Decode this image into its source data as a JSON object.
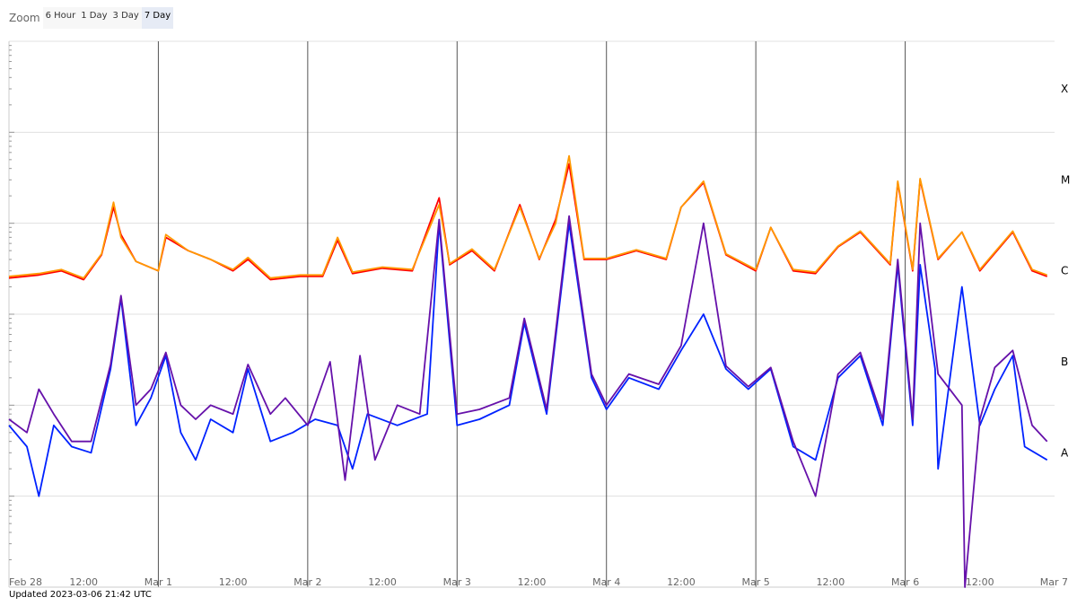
{
  "zoom": {
    "label": "Zoom",
    "buttons": [
      "6 Hour",
      "1 Day",
      "3 Day",
      "7 Day"
    ],
    "active": "7 Day"
  },
  "footer": {
    "updated": "Updated 2023-03-06 21:42 UTC"
  },
  "chart_data": {
    "type": "line",
    "title": "",
    "xlabel": "",
    "ylabel": "",
    "y_scale": "log",
    "ylim": [
      1e-09,
      0.001
    ],
    "x_range": [
      "2023-02-28 00:00",
      "2023-03-07 00:00"
    ],
    "x_ticks": [
      "Feb 28",
      "12:00",
      "Mar 1",
      "12:00",
      "Mar 2",
      "12:00",
      "Mar 3",
      "12:00",
      "Mar 4",
      "12:00",
      "Mar 5",
      "12:00",
      "Mar 6",
      "12:00",
      "Mar 7"
    ],
    "right_labels": [
      {
        "label": "X",
        "value": 0.0003
      },
      {
        "label": "M",
        "value": 3e-05
      },
      {
        "label": "C",
        "value": 3e-06
      },
      {
        "label": "B",
        "value": 3e-07
      },
      {
        "label": "A",
        "value": 3e-08
      }
    ],
    "grid": "horizontal gridlines at each decade; vertical lines at each day",
    "colors": {
      "long_primary": "#ff0000",
      "long_secondary": "#ff9900",
      "short_primary": "#0022ff",
      "short_secondary": "#6611aa"
    },
    "x": [
      0,
      0.25,
      0.5,
      0.75,
      1.0,
      1.25,
      1.5,
      1.75,
      2.0,
      2.25,
      2.5,
      2.75,
      3.0,
      3.25,
      3.5,
      3.75,
      4.0,
      4.25,
      4.5,
      4.75,
      5.0,
      5.25,
      5.5,
      5.75,
      6.0,
      6.25,
      6.5,
      6.75,
      7.0
    ],
    "series": [
      {
        "color": "#ff0000",
        "values": [
          {
            "x": 0.0,
            "y": 2.5e-06
          },
          {
            "x": 0.2,
            "y": 2.7e-06
          },
          {
            "x": 0.35,
            "y": 3e-06
          },
          {
            "x": 0.5,
            "y": 2.4e-06
          },
          {
            "x": 0.62,
            "y": 4.5e-06
          },
          {
            "x": 0.7,
            "y": 1.5e-05
          },
          {
            "x": 0.75,
            "y": 7.5e-06
          },
          {
            "x": 0.85,
            "y": 3.8e-06
          },
          {
            "x": 1.0,
            "y": 3e-06
          },
          {
            "x": 1.05,
            "y": 7e-06
          },
          {
            "x": 1.2,
            "y": 5e-06
          },
          {
            "x": 1.35,
            "y": 4e-06
          },
          {
            "x": 1.5,
            "y": 3e-06
          },
          {
            "x": 1.6,
            "y": 4e-06
          },
          {
            "x": 1.75,
            "y": 2.4e-06
          },
          {
            "x": 1.95,
            "y": 2.6e-06
          },
          {
            "x": 2.1,
            "y": 2.6e-06
          },
          {
            "x": 2.2,
            "y": 6.5e-06
          },
          {
            "x": 2.3,
            "y": 2.8e-06
          },
          {
            "x": 2.5,
            "y": 3.2e-06
          },
          {
            "x": 2.7,
            "y": 3e-06
          },
          {
            "x": 2.88,
            "y": 1.9e-05
          },
          {
            "x": 2.95,
            "y": 3.5e-06
          },
          {
            "x": 3.1,
            "y": 5e-06
          },
          {
            "x": 3.25,
            "y": 3e-06
          },
          {
            "x": 3.42,
            "y": 1.6e-05
          },
          {
            "x": 3.55,
            "y": 4e-06
          },
          {
            "x": 3.66,
            "y": 1.1e-05
          },
          {
            "x": 3.75,
            "y": 4.5e-05
          },
          {
            "x": 3.85,
            "y": 4e-06
          },
          {
            "x": 4.0,
            "y": 4e-06
          },
          {
            "x": 4.2,
            "y": 5e-06
          },
          {
            "x": 4.4,
            "y": 4e-06
          },
          {
            "x": 4.5,
            "y": 1.5e-05
          },
          {
            "x": 4.65,
            "y": 2.8e-05
          },
          {
            "x": 4.8,
            "y": 4.5e-06
          },
          {
            "x": 5.0,
            "y": 3e-06
          },
          {
            "x": 5.1,
            "y": 9e-06
          },
          {
            "x": 5.25,
            "y": 3e-06
          },
          {
            "x": 5.4,
            "y": 2.8e-06
          },
          {
            "x": 5.55,
            "y": 5.5e-06
          },
          {
            "x": 5.7,
            "y": 8e-06
          },
          {
            "x": 5.9,
            "y": 3.5e-06
          },
          {
            "x": 5.95,
            "y": 2.8e-05
          },
          {
            "x": 6.05,
            "y": 3e-06
          },
          {
            "x": 6.1,
            "y": 3e-05
          },
          {
            "x": 6.22,
            "y": 4e-06
          },
          {
            "x": 6.38,
            "y": 8e-06
          },
          {
            "x": 6.5,
            "y": 3e-06
          },
          {
            "x": 6.72,
            "y": 8e-06
          },
          {
            "x": 6.85,
            "y": 3e-06
          },
          {
            "x": 6.95,
            "y": 2.6e-06
          }
        ]
      },
      {
        "color": "#ff9900",
        "values": [
          {
            "x": 0.0,
            "y": 2.6e-06
          },
          {
            "x": 0.2,
            "y": 2.8e-06
          },
          {
            "x": 0.35,
            "y": 3.1e-06
          },
          {
            "x": 0.5,
            "y": 2.5e-06
          },
          {
            "x": 0.62,
            "y": 4.6e-06
          },
          {
            "x": 0.7,
            "y": 1.7e-05
          },
          {
            "x": 0.75,
            "y": 7e-06
          },
          {
            "x": 0.85,
            "y": 3.8e-06
          },
          {
            "x": 1.0,
            "y": 3e-06
          },
          {
            "x": 1.05,
            "y": 7.5e-06
          },
          {
            "x": 1.2,
            "y": 5e-06
          },
          {
            "x": 1.35,
            "y": 4e-06
          },
          {
            "x": 1.5,
            "y": 3.1e-06
          },
          {
            "x": 1.6,
            "y": 4.2e-06
          },
          {
            "x": 1.75,
            "y": 2.5e-06
          },
          {
            "x": 1.95,
            "y": 2.7e-06
          },
          {
            "x": 2.1,
            "y": 2.7e-06
          },
          {
            "x": 2.2,
            "y": 7e-06
          },
          {
            "x": 2.3,
            "y": 2.9e-06
          },
          {
            "x": 2.5,
            "y": 3.3e-06
          },
          {
            "x": 2.7,
            "y": 3.1e-06
          },
          {
            "x": 2.88,
            "y": 1.6e-05
          },
          {
            "x": 2.95,
            "y": 3.6e-06
          },
          {
            "x": 3.1,
            "y": 5.2e-06
          },
          {
            "x": 3.25,
            "y": 3.1e-06
          },
          {
            "x": 3.42,
            "y": 1.5e-05
          },
          {
            "x": 3.55,
            "y": 4.1e-06
          },
          {
            "x": 3.66,
            "y": 1e-05
          },
          {
            "x": 3.75,
            "y": 5.5e-05
          },
          {
            "x": 3.85,
            "y": 4.1e-06
          },
          {
            "x": 4.0,
            "y": 4.1e-06
          },
          {
            "x": 4.2,
            "y": 5.1e-06
          },
          {
            "x": 4.4,
            "y": 4.1e-06
          },
          {
            "x": 4.5,
            "y": 1.5e-05
          },
          {
            "x": 4.65,
            "y": 2.9e-05
          },
          {
            "x": 4.8,
            "y": 4.6e-06
          },
          {
            "x": 5.0,
            "y": 3.1e-06
          },
          {
            "x": 5.1,
            "y": 9e-06
          },
          {
            "x": 5.25,
            "y": 3.1e-06
          },
          {
            "x": 5.4,
            "y": 2.9e-06
          },
          {
            "x": 5.55,
            "y": 5.6e-06
          },
          {
            "x": 5.7,
            "y": 8.2e-06
          },
          {
            "x": 5.9,
            "y": 3.6e-06
          },
          {
            "x": 5.95,
            "y": 2.9e-05
          },
          {
            "x": 6.05,
            "y": 3.1e-06
          },
          {
            "x": 6.1,
            "y": 3.1e-05
          },
          {
            "x": 6.22,
            "y": 4.1e-06
          },
          {
            "x": 6.38,
            "y": 8e-06
          },
          {
            "x": 6.5,
            "y": 3.1e-06
          },
          {
            "x": 6.72,
            "y": 8.2e-06
          },
          {
            "x": 6.85,
            "y": 3.1e-06
          },
          {
            "x": 6.95,
            "y": 2.7e-06
          }
        ]
      },
      {
        "color": "#0022ff",
        "values": [
          {
            "x": 0.0,
            "y": 6e-08
          },
          {
            "x": 0.12,
            "y": 3.5e-08
          },
          {
            "x": 0.2,
            "y": 1e-08
          },
          {
            "x": 0.3,
            "y": 6e-08
          },
          {
            "x": 0.42,
            "y": 3.5e-08
          },
          {
            "x": 0.55,
            "y": 3e-08
          },
          {
            "x": 0.68,
            "y": 2.5e-07
          },
          {
            "x": 0.75,
            "y": 1.5e-06
          },
          {
            "x": 0.85,
            "y": 6e-08
          },
          {
            "x": 0.95,
            "y": 1.2e-07
          },
          {
            "x": 1.05,
            "y": 3.5e-07
          },
          {
            "x": 1.15,
            "y": 5e-08
          },
          {
            "x": 1.25,
            "y": 2.5e-08
          },
          {
            "x": 1.35,
            "y": 7e-08
          },
          {
            "x": 1.5,
            "y": 5e-08
          },
          {
            "x": 1.6,
            "y": 2.5e-07
          },
          {
            "x": 1.75,
            "y": 4e-08
          },
          {
            "x": 1.9,
            "y": 5e-08
          },
          {
            "x": 2.05,
            "y": 7e-08
          },
          {
            "x": 2.2,
            "y": 6e-08
          },
          {
            "x": 2.3,
            "y": 2e-08
          },
          {
            "x": 2.4,
            "y": 8e-08
          },
          {
            "x": 2.6,
            "y": 6e-08
          },
          {
            "x": 2.8,
            "y": 8e-08
          },
          {
            "x": 2.88,
            "y": 1e-05
          },
          {
            "x": 3.0,
            "y": 6e-08
          },
          {
            "x": 3.15,
            "y": 7e-08
          },
          {
            "x": 3.35,
            "y": 1e-07
          },
          {
            "x": 3.45,
            "y": 8e-07
          },
          {
            "x": 3.6,
            "y": 8e-08
          },
          {
            "x": 3.75,
            "y": 1e-05
          },
          {
            "x": 3.9,
            "y": 2e-07
          },
          {
            "x": 4.0,
            "y": 9e-08
          },
          {
            "x": 4.15,
            "y": 2e-07
          },
          {
            "x": 4.35,
            "y": 1.5e-07
          },
          {
            "x": 4.5,
            "y": 4e-07
          },
          {
            "x": 4.65,
            "y": 1e-06
          },
          {
            "x": 4.8,
            "y": 2.5e-07
          },
          {
            "x": 4.95,
            "y": 1.5e-07
          },
          {
            "x": 5.1,
            "y": 2.5e-07
          },
          {
            "x": 5.25,
            "y": 3.5e-08
          },
          {
            "x": 5.4,
            "y": 2.5e-08
          },
          {
            "x": 5.55,
            "y": 2e-07
          },
          {
            "x": 5.7,
            "y": 3.5e-07
          },
          {
            "x": 5.85,
            "y": 6e-08
          },
          {
            "x": 5.95,
            "y": 3.5e-06
          },
          {
            "x": 6.05,
            "y": 6e-08
          },
          {
            "x": 6.1,
            "y": 3.5e-06
          },
          {
            "x": 6.2,
            "y": 2.5e-07
          },
          {
            "x": 6.22,
            "y": 2e-08
          },
          {
            "x": 6.38,
            "y": 2e-06
          },
          {
            "x": 6.5,
            "y": 6e-08
          },
          {
            "x": 6.6,
            "y": 1.5e-07
          },
          {
            "x": 6.72,
            "y": 3.5e-07
          },
          {
            "x": 6.8,
            "y": 3.5e-08
          },
          {
            "x": 6.95,
            "y": 2.5e-08
          }
        ]
      },
      {
        "color": "#6611aa",
        "values": [
          {
            "x": 0.0,
            "y": 7e-08
          },
          {
            "x": 0.12,
            "y": 5e-08
          },
          {
            "x": 0.2,
            "y": 1.5e-07
          },
          {
            "x": 0.3,
            "y": 8e-08
          },
          {
            "x": 0.42,
            "y": 4e-08
          },
          {
            "x": 0.55,
            "y": 4e-08
          },
          {
            "x": 0.68,
            "y": 2.8e-07
          },
          {
            "x": 0.75,
            "y": 1.6e-06
          },
          {
            "x": 0.85,
            "y": 1e-07
          },
          {
            "x": 0.95,
            "y": 1.5e-07
          },
          {
            "x": 1.05,
            "y": 3.8e-07
          },
          {
            "x": 1.15,
            "y": 1e-07
          },
          {
            "x": 1.25,
            "y": 7e-08
          },
          {
            "x": 1.35,
            "y": 1e-07
          },
          {
            "x": 1.5,
            "y": 8e-08
          },
          {
            "x": 1.6,
            "y": 2.8e-07
          },
          {
            "x": 1.75,
            "y": 8e-08
          },
          {
            "x": 1.85,
            "y": 1.2e-07
          },
          {
            "x": 2.0,
            "y": 6e-08
          },
          {
            "x": 2.15,
            "y": 3e-07
          },
          {
            "x": 2.25,
            "y": 1.5e-08
          },
          {
            "x": 2.35,
            "y": 3.5e-07
          },
          {
            "x": 2.45,
            "y": 2.5e-08
          },
          {
            "x": 2.6,
            "y": 1e-07
          },
          {
            "x": 2.75,
            "y": 8e-08
          },
          {
            "x": 2.88,
            "y": 1.1e-05
          },
          {
            "x": 3.0,
            "y": 8e-08
          },
          {
            "x": 3.15,
            "y": 9e-08
          },
          {
            "x": 3.35,
            "y": 1.2e-07
          },
          {
            "x": 3.45,
            "y": 9e-07
          },
          {
            "x": 3.6,
            "y": 9e-08
          },
          {
            "x": 3.75,
            "y": 1.2e-05
          },
          {
            "x": 3.9,
            "y": 2.2e-07
          },
          {
            "x": 4.0,
            "y": 1e-07
          },
          {
            "x": 4.15,
            "y": 2.2e-07
          },
          {
            "x": 4.35,
            "y": 1.7e-07
          },
          {
            "x": 4.5,
            "y": 4.5e-07
          },
          {
            "x": 4.65,
            "y": 1e-05
          },
          {
            "x": 4.8,
            "y": 2.7e-07
          },
          {
            "x": 4.95,
            "y": 1.6e-07
          },
          {
            "x": 5.1,
            "y": 2.6e-07
          },
          {
            "x": 5.25,
            "y": 4e-08
          },
          {
            "x": 5.4,
            "y": 1e-08
          },
          {
            "x": 5.55,
            "y": 2.2e-07
          },
          {
            "x": 5.7,
            "y": 3.8e-07
          },
          {
            "x": 5.85,
            "y": 7e-08
          },
          {
            "x": 5.95,
            "y": 4e-06
          },
          {
            "x": 6.05,
            "y": 7e-08
          },
          {
            "x": 6.1,
            "y": 1e-05
          },
          {
            "x": 6.22,
            "y": 2.2e-07
          },
          {
            "x": 6.38,
            "y": 1e-07
          },
          {
            "x": 6.4,
            "y": 1e-09
          },
          {
            "x": 6.5,
            "y": 7e-08
          },
          {
            "x": 6.6,
            "y": 2.6e-07
          },
          {
            "x": 6.72,
            "y": 4e-07
          },
          {
            "x": 6.85,
            "y": 6e-08
          },
          {
            "x": 6.95,
            "y": 4e-08
          }
        ]
      }
    ]
  }
}
